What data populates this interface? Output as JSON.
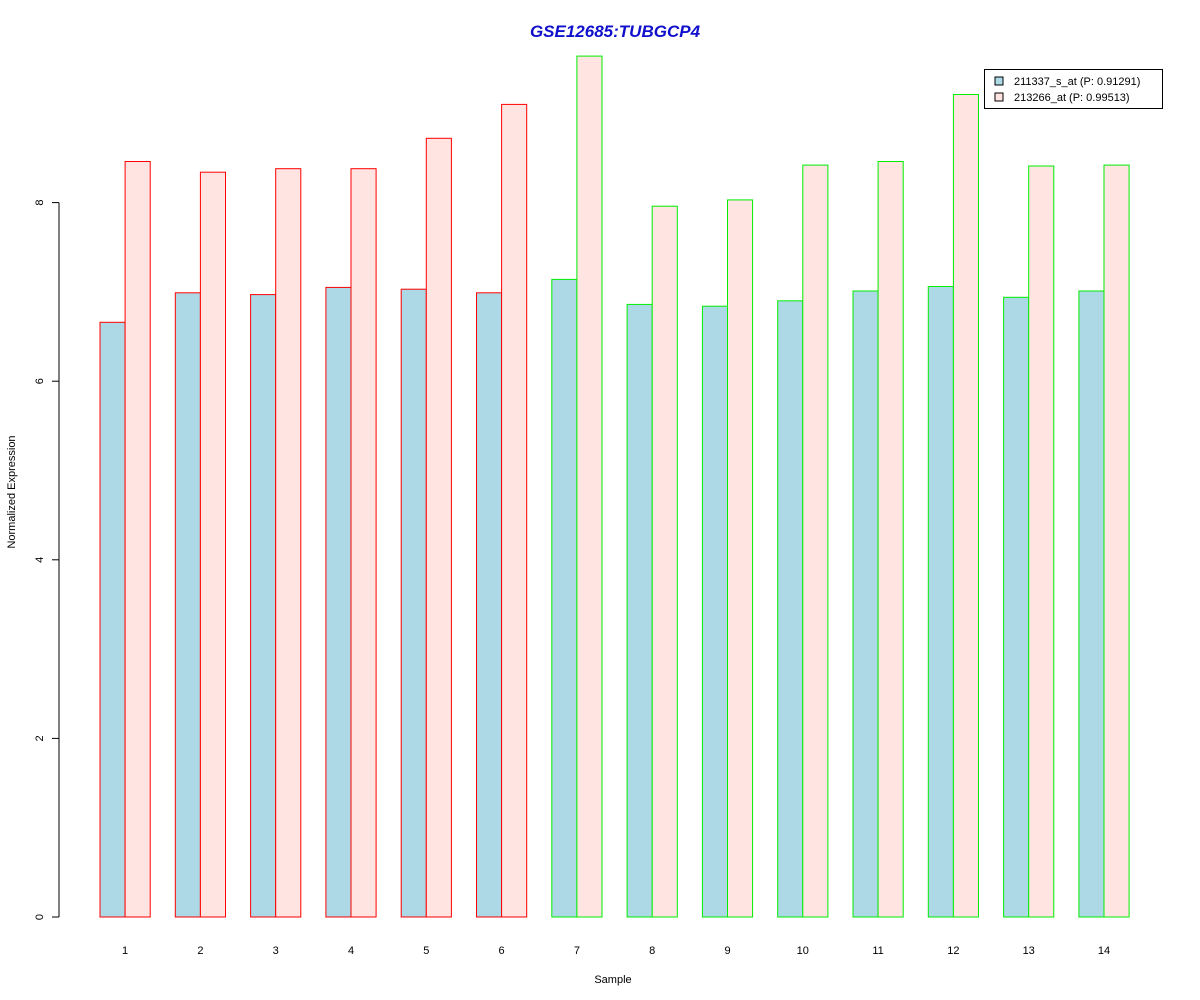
{
  "chart_data": {
    "type": "bar",
    "title": "GSE12685:TUBGCP4",
    "xlabel": "Sample",
    "ylabel": "Normalized Expression",
    "categories": [
      "1",
      "2",
      "3",
      "4",
      "5",
      "6",
      "7",
      "8",
      "9",
      "10",
      "11",
      "12",
      "13",
      "14"
    ],
    "group_border_colors": [
      "#ff0000",
      "#ff0000",
      "#ff0000",
      "#ff0000",
      "#ff0000",
      "#ff0000",
      "#00ee00",
      "#00ee00",
      "#00ee00",
      "#00ee00",
      "#00ee00",
      "#00ee00",
      "#00ee00",
      "#00ee00"
    ],
    "series": [
      {
        "name": "211337_s_at (P: 0.91291)",
        "fill": "#add8e6",
        "values": [
          6.66,
          6.99,
          6.97,
          7.05,
          7.03,
          6.99,
          7.14,
          6.86,
          6.84,
          6.9,
          7.01,
          7.06,
          6.94,
          7.01
        ]
      },
      {
        "name": "213266_at (P: 0.99513)",
        "fill": "#ffe4e1",
        "values": [
          8.46,
          8.34,
          8.38,
          8.38,
          8.72,
          9.1,
          9.64,
          7.96,
          8.03,
          8.42,
          8.46,
          9.21,
          8.41,
          8.42
        ]
      }
    ],
    "ylim": [
      0,
      9.64
    ],
    "yticks": [
      0,
      2,
      4,
      6,
      8
    ],
    "legend_position": "top-right",
    "grid": false
  }
}
